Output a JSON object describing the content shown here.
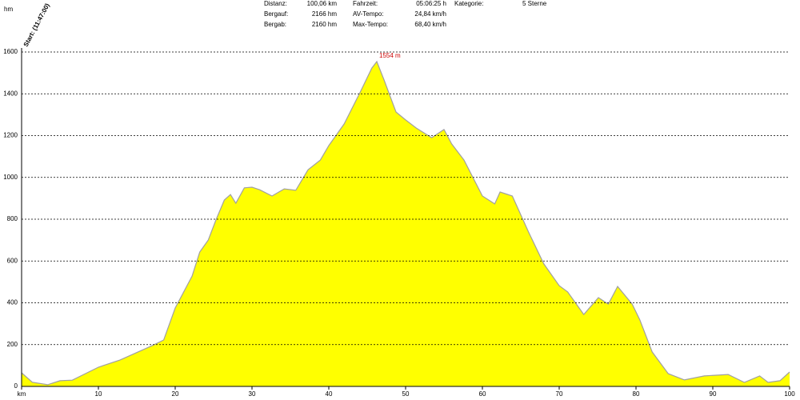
{
  "header": {
    "stats": [
      {
        "label": "Distanz:",
        "value": "100,06 km"
      },
      {
        "label": "Bergauf:",
        "value": "2166 hm"
      },
      {
        "label": "Bergab:",
        "value": "2160 hm"
      },
      {
        "label": "Fahrzeit:",
        "value": "05:06:25 h"
      },
      {
        "label": "AV-Tempo:",
        "value": "24,84 km/h"
      },
      {
        "label": "Max-Tempo:",
        "value": "68,40 km/h"
      },
      {
        "label": "Kategorie:",
        "value": "5 Sterne"
      }
    ]
  },
  "chart_data": {
    "type": "area",
    "start_label": "Start: (11:47:00)",
    "y_label": "hm",
    "x": [
      0,
      1.4,
      3.4,
      5,
      6.6,
      10,
      12.8,
      17,
      18.5,
      20,
      22.2,
      23.2,
      24.3,
      25.3,
      26.4,
      27.2,
      27.9,
      29,
      30,
      31,
      32.6,
      34.2,
      35.7,
      37.3,
      38.9,
      40,
      42,
      44.1,
      45.6,
      46.25,
      47.2,
      48.75,
      50,
      51.4,
      53.4,
      55,
      56,
      57.6,
      60,
      61.6,
      62.3,
      63.9,
      66,
      68,
      70,
      71.1,
      73.2,
      75.1,
      76.4,
      77.6,
      79.5,
      80.5,
      82.1,
      84.2,
      86.3,
      88.9,
      92,
      94.1,
      96.1,
      97.2,
      98.75,
      100
    ],
    "values": [
      65,
      20,
      8,
      27,
      30,
      92,
      126,
      195,
      222,
      375,
      528,
      643,
      700,
      796,
      892,
      918,
      876,
      950,
      953,
      941,
      911,
      945,
      938,
      1037,
      1083,
      1152,
      1256,
      1409,
      1523,
      1554,
      1466,
      1313,
      1275,
      1236,
      1190,
      1229,
      1160,
      1083,
      911,
      873,
      930,
      911,
      739,
      586,
      482,
      452,
      344,
      425,
      394,
      478,
      394,
      318,
      165,
      61,
      31,
      50,
      57,
      19,
      50,
      19,
      27,
      69
    ],
    "color": "#ffff00",
    "line_color": "#a0a0a0",
    "xlim": [
      0,
      100
    ],
    "ylim": [
      0,
      1600
    ],
    "xticks": [
      {
        "value": 0,
        "label": "km"
      },
      10,
      20,
      30,
      40,
      50,
      60,
      70,
      80,
      90,
      100
    ],
    "yticks": [
      0,
      200,
      400,
      600,
      800,
      1000,
      1200,
      1400,
      1600
    ],
    "grid": true,
    "annotations": [
      {
        "text": "1554 m",
        "x": 46.25,
        "y": 1554,
        "color": "#cc0000"
      }
    ]
  }
}
